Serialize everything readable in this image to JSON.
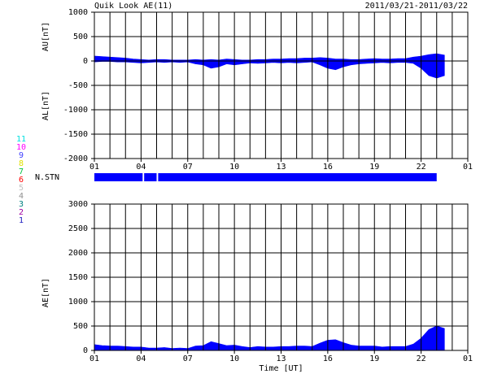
{
  "header": {
    "title": "Quik Look AE(11)",
    "date_range": "2011/03/21-2011/03/22"
  },
  "legend": [
    {
      "label": "11",
      "color": "#00e0e0"
    },
    {
      "label": "10",
      "color": "#ff00ff"
    },
    {
      "label": "9",
      "color": "#4040ff"
    },
    {
      "label": "8",
      "color": "#e0e000"
    },
    {
      "label": "7",
      "color": "#00c040"
    },
    {
      "label": "6",
      "color": "#ff0000"
    },
    {
      "label": "5",
      "color": "#c0c0c0"
    },
    {
      "label": "4",
      "color": "#909090"
    },
    {
      "label": "3",
      "color": "#008080"
    },
    {
      "label": "2",
      "color": "#a000a0"
    },
    {
      "label": "1",
      "color": "#2020c0"
    }
  ],
  "n_stn": {
    "label": "N.STN",
    "color": "#0000ff",
    "segments": [
      {
        "start": 1,
        "end": 4.1
      },
      {
        "start": 4.2,
        "end": 5.0
      },
      {
        "start": 5.1,
        "end": 23.0
      }
    ]
  },
  "chart_data": [
    {
      "type": "area",
      "xlim": [
        1,
        25
      ],
      "xticks": [
        {
          "value": 1,
          "label": "01"
        },
        {
          "value": 4,
          "label": "04"
        },
        {
          "value": 7,
          "label": "07"
        },
        10,
        13,
        16,
        19,
        22,
        {
          "value": 25,
          "label": "01"
        }
      ],
      "ylim": [
        -2000,
        1000
      ],
      "yticks": [
        -2000,
        -1500,
        -1000,
        -500,
        0,
        500,
        1000
      ],
      "x": [
        1,
        1.5,
        2,
        2.5,
        3,
        3.5,
        4,
        4.5,
        5,
        5.5,
        6,
        6.5,
        7,
        7.5,
        8,
        8.5,
        9,
        9.5,
        10,
        10.5,
        11,
        11.5,
        12,
        12.5,
        13,
        13.5,
        14,
        14.5,
        15,
        15.5,
        16,
        16.5,
        17,
        17.5,
        18,
        18.5,
        19,
        19.5,
        20,
        20.5,
        21,
        21.5,
        22,
        22.5,
        23,
        23.5
      ],
      "series": [
        {
          "name": "AU[nT]",
          "color": "#0000ff",
          "values": [
            100,
            90,
            80,
            70,
            60,
            40,
            30,
            20,
            30,
            30,
            20,
            20,
            20,
            30,
            20,
            30,
            20,
            40,
            30,
            20,
            20,
            30,
            30,
            40,
            40,
            50,
            50,
            60,
            60,
            70,
            60,
            40,
            40,
            30,
            30,
            40,
            50,
            40,
            40,
            50,
            50,
            80,
            100,
            130,
            150,
            120
          ]
        },
        {
          "name": "AL[nT]",
          "color": "#0000ff",
          "values": [
            -20,
            -10,
            -10,
            -20,
            -20,
            -30,
            -40,
            -30,
            -20,
            -30,
            -20,
            -30,
            -20,
            -60,
            -80,
            -150,
            -120,
            -60,
            -80,
            -60,
            -40,
            -50,
            -40,
            -30,
            -40,
            -30,
            -40,
            -30,
            -20,
            -80,
            -150,
            -180,
            -120,
            -80,
            -60,
            -50,
            -40,
            -30,
            -40,
            -30,
            -30,
            -50,
            -150,
            -300,
            -350,
            -300
          ]
        }
      ]
    },
    {
      "type": "area",
      "xlim": [
        1,
        25
      ],
      "xticks": [
        {
          "value": 1,
          "label": "01"
        },
        {
          "value": 4,
          "label": "04"
        },
        {
          "value": 7,
          "label": "07"
        },
        10,
        13,
        16,
        19,
        22,
        {
          "value": 25,
          "label": "01"
        }
      ],
      "ylim": [
        0,
        3000
      ],
      "yticks": [
        0,
        500,
        1000,
        1500,
        2000,
        2500,
        3000
      ],
      "xlabel": "Time [UT]",
      "x": [
        1,
        1.5,
        2,
        2.5,
        3,
        3.5,
        4,
        4.5,
        5,
        5.5,
        6,
        6.5,
        7,
        7.5,
        8,
        8.5,
        9,
        9.5,
        10,
        10.5,
        11,
        11.5,
        12,
        12.5,
        13,
        13.5,
        14,
        14.5,
        15,
        15.5,
        16,
        16.5,
        17,
        17.5,
        18,
        18.5,
        19,
        19.5,
        20,
        20.5,
        21,
        21.5,
        22,
        22.5,
        23,
        23.5
      ],
      "series": [
        {
          "name": "AE[nT]",
          "color": "#0000ff",
          "values": [
            120,
            100,
            90,
            90,
            80,
            70,
            70,
            50,
            50,
            60,
            40,
            50,
            40,
            90,
            100,
            180,
            140,
            100,
            110,
            80,
            60,
            80,
            70,
            70,
            80,
            80,
            90,
            90,
            80,
            150,
            210,
            220,
            160,
            110,
            90,
            90,
            90,
            70,
            80,
            80,
            80,
            130,
            250,
            430,
            500,
            450
          ]
        }
      ]
    }
  ]
}
